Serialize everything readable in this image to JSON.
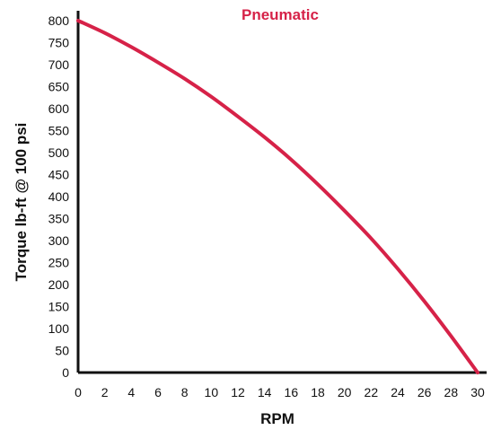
{
  "chart_data": {
    "type": "line",
    "title": "Pneumatic",
    "xlabel": "RPM",
    "ylabel": "Torque lb-ft @ 100 psi",
    "xlim": [
      0,
      30
    ],
    "ylim": [
      0,
      800
    ],
    "x_ticks": [
      "0",
      "2",
      "4",
      "6",
      "8",
      "10",
      "12",
      "14",
      "16",
      "18",
      "20",
      "22",
      "24",
      "26",
      "28",
      "30"
    ],
    "y_ticks": [
      "0",
      "50",
      "100",
      "150",
      "200",
      "250",
      "300",
      "350",
      "400",
      "450",
      "500",
      "550",
      "600",
      "650",
      "700",
      "750",
      "800"
    ],
    "grid": false,
    "series": [
      {
        "color": "#d62248",
        "x": [
          0,
          2,
          4,
          6,
          8,
          10,
          12,
          14,
          16,
          18,
          20,
          22,
          24,
          26,
          28,
          30
        ],
        "y": [
          800,
          772,
          740,
          705,
          668,
          627,
          582,
          535,
          484,
          428,
          368,
          305,
          236,
          162,
          83,
          0
        ]
      }
    ]
  },
  "colors": {
    "title": "#d62248",
    "axis": "#111111",
    "line": "#d62248"
  }
}
